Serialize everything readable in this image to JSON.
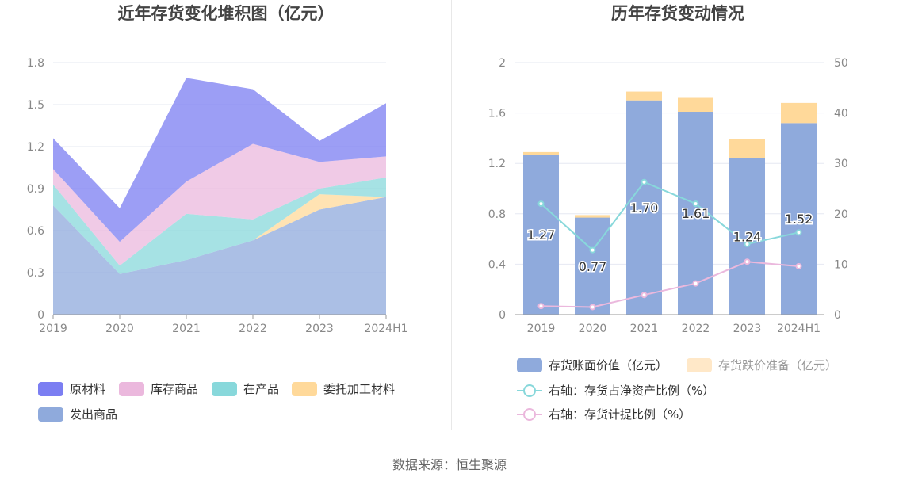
{
  "footer": {
    "source": "数据来源：恒生聚源"
  },
  "chart_data": [
    {
      "type": "area",
      "stacked": true,
      "title": "近年存货变化堆积图（亿元）",
      "categories": [
        "2019",
        "2020",
        "2021",
        "2022",
        "2023",
        "2024H1"
      ],
      "ylim": [
        0,
        1.8
      ],
      "yticks": [
        "0",
        "0.3",
        "0.6",
        "0.9",
        "1.2",
        "1.5",
        "1.8"
      ],
      "grid": true,
      "legend_position": "bottom",
      "series": [
        {
          "name": "发出商品",
          "color": "#8faadc",
          "values": [
            0.78,
            0.29,
            0.39,
            0.53,
            0.75,
            0.84
          ]
        },
        {
          "name": "委托加工材料",
          "color": "#ffd99a",
          "values": [
            0.0,
            0.0,
            0.0,
            0.0,
            0.11,
            0.0
          ]
        },
        {
          "name": "在产品",
          "color": "#88d8db",
          "values": [
            0.15,
            0.06,
            0.33,
            0.15,
            0.04,
            0.14
          ]
        },
        {
          "name": "库存商品",
          "color": "#ebb8dd",
          "values": [
            0.11,
            0.17,
            0.23,
            0.54,
            0.19,
            0.15
          ]
        },
        {
          "name": "原材料",
          "color": "#7b7ef2",
          "values": [
            0.22,
            0.24,
            0.74,
            0.39,
            0.15,
            0.38
          ]
        }
      ],
      "legend_order": [
        "原材料",
        "库存商品",
        "在产品",
        "委托加工材料",
        "发出商品"
      ]
    },
    {
      "type": "bar",
      "stacked": true,
      "title": "历年存货变动情况",
      "categories": [
        "2019",
        "2020",
        "2021",
        "2022",
        "2023",
        "2024H1"
      ],
      "ylim": [
        0,
        2
      ],
      "yticks": [
        "0",
        "0.4",
        "0.8",
        "1.2",
        "1.6",
        "2"
      ],
      "y2lim": [
        0,
        50
      ],
      "y2ticks": [
        "0",
        "10",
        "20",
        "30",
        "40",
        "50"
      ],
      "grid": true,
      "legend_position": "bottom",
      "series": [
        {
          "name": "存货账面价值（亿元）",
          "kind": "bar",
          "color": "#8faadc",
          "values": [
            1.27,
            0.77,
            1.7,
            1.61,
            1.24,
            1.52
          ],
          "labels": [
            "1.27",
            "0.77",
            "1.70",
            "1.61",
            "1.24",
            "1.52"
          ]
        },
        {
          "name": "存货跌价准备（亿元）",
          "kind": "bar",
          "color": "#ffd99a",
          "legend_color": "#ffe8c8",
          "values": [
            0.02,
            0.02,
            0.07,
            0.11,
            0.15,
            0.16
          ]
        },
        {
          "name": "右轴：存货占净资产比例（%）",
          "kind": "line",
          "axis": "right",
          "color": "#88d8db",
          "values": [
            22.0,
            12.8,
            26.3,
            22.0,
            14.0,
            16.3
          ]
        },
        {
          "name": "右轴：存货计提比例（%）",
          "kind": "line",
          "axis": "right",
          "color": "#ebb8dd",
          "values": [
            1.7,
            1.5,
            3.9,
            6.2,
            10.5,
            9.6
          ]
        }
      ]
    }
  ]
}
